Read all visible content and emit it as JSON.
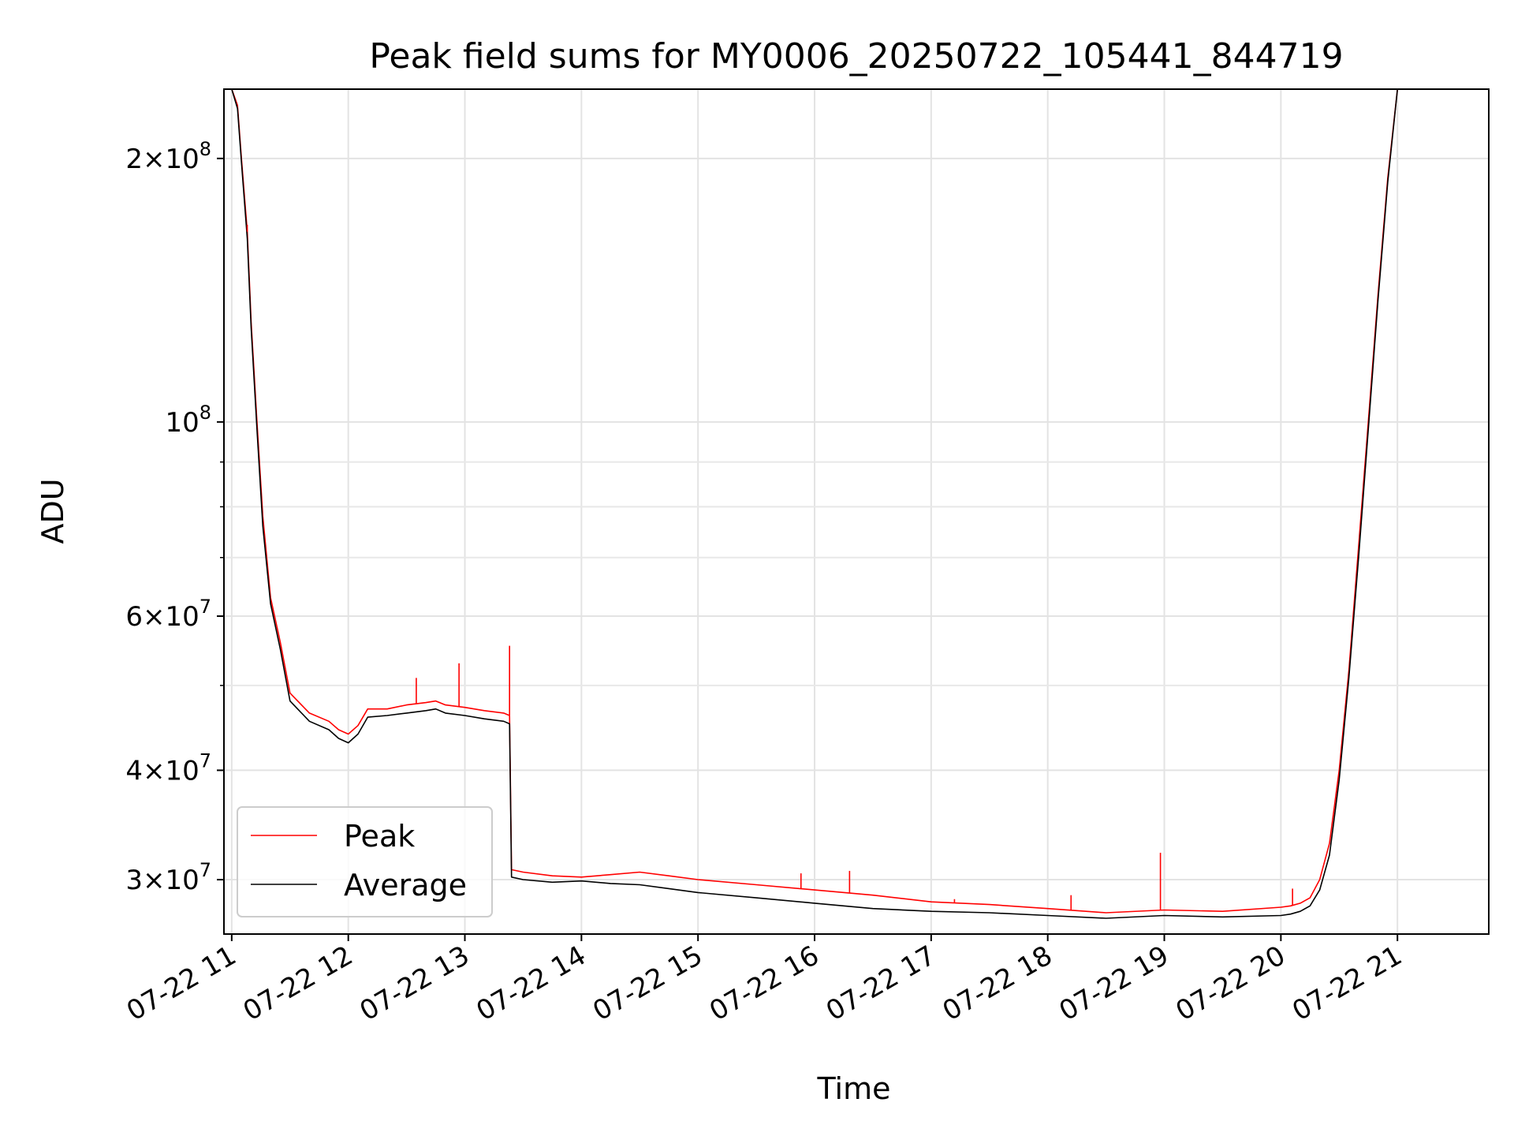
{
  "chart_data": {
    "type": "line",
    "title": "Peak field sums for MY0006_20250722_105441_844719",
    "xlabel": "Time",
    "ylabel": "ADU",
    "yscale": "log",
    "grid": true,
    "legend_position": "lower-left",
    "xlim": [
      "2025-07-22 10:56",
      "2025-07-22 21:47"
    ],
    "ylim": [
      26000000,
      240000000
    ],
    "x_ticks": [
      {
        "value": "2025-07-22 11:00",
        "label": "07-22 11"
      },
      {
        "value": "2025-07-22 12:00",
        "label": "07-22 12"
      },
      {
        "value": "2025-07-22 13:00",
        "label": "07-22 13"
      },
      {
        "value": "2025-07-22 14:00",
        "label": "07-22 14"
      },
      {
        "value": "2025-07-22 15:00",
        "label": "07-22 15"
      },
      {
        "value": "2025-07-22 16:00",
        "label": "07-22 16"
      },
      {
        "value": "2025-07-22 17:00",
        "label": "07-22 17"
      },
      {
        "value": "2025-07-22 18:00",
        "label": "07-22 18"
      },
      {
        "value": "2025-07-22 19:00",
        "label": "07-22 19"
      },
      {
        "value": "2025-07-22 20:00",
        "label": "07-22 20"
      },
      {
        "value": "2025-07-22 21:00",
        "label": "07-22 21"
      }
    ],
    "y_ticks_major": [
      {
        "value": 30000000,
        "base": "3×10",
        "exp": "7"
      },
      {
        "value": 40000000,
        "base": "4×10",
        "exp": "7"
      },
      {
        "value": 60000000,
        "base": "6×10",
        "exp": "7"
      },
      {
        "value": 100000000,
        "base": "10",
        "exp": "8"
      },
      {
        "value": 200000000,
        "base": "2×10",
        "exp": "8"
      }
    ],
    "y_ticks_minor": [
      50000000,
      70000000,
      80000000,
      90000000
    ],
    "series": [
      {
        "name": "Peak",
        "color": "#ff0000",
        "x": [
          "2025-07-22 11:00",
          "2025-07-22 11:03",
          "2025-07-22 11:05",
          "2025-07-22 11:08",
          "2025-07-22 11:10",
          "2025-07-22 11:13",
          "2025-07-22 11:16",
          "2025-07-22 11:20",
          "2025-07-22 11:25",
          "2025-07-22 11:30",
          "2025-07-22 11:40",
          "2025-07-22 11:50",
          "2025-07-22 11:55",
          "2025-07-22 12:00",
          "2025-07-22 12:05",
          "2025-07-22 12:10",
          "2025-07-22 12:20",
          "2025-07-22 12:30",
          "2025-07-22 12:40",
          "2025-07-22 12:45",
          "2025-07-22 12:50",
          "2025-07-22 13:00",
          "2025-07-22 13:10",
          "2025-07-22 13:20",
          "2025-07-22 13:23",
          "2025-07-22 13:24",
          "2025-07-22 13:30",
          "2025-07-22 13:45",
          "2025-07-22 14:00",
          "2025-07-22 14:15",
          "2025-07-22 14:30",
          "2025-07-22 14:45",
          "2025-07-22 15:00",
          "2025-07-22 15:30",
          "2025-07-22 16:00",
          "2025-07-22 16:30",
          "2025-07-22 17:00",
          "2025-07-22 17:30",
          "2025-07-22 18:00",
          "2025-07-22 18:30",
          "2025-07-22 19:00",
          "2025-07-22 19:30",
          "2025-07-22 20:00",
          "2025-07-22 20:05",
          "2025-07-22 20:10",
          "2025-07-22 20:15",
          "2025-07-22 20:20",
          "2025-07-22 20:25",
          "2025-07-22 20:30",
          "2025-07-22 20:35",
          "2025-07-22 20:40",
          "2025-07-22 20:45",
          "2025-07-22 20:50",
          "2025-07-22 20:55",
          "2025-07-22 21:00",
          "2025-07-22 21:05"
        ],
        "values": [
          240000000,
          230000000,
          200000000,
          165000000,
          130000000,
          100000000,
          78000000,
          63000000,
          56000000,
          49000000,
          46500000,
          45500000,
          44500000,
          44000000,
          45000000,
          47000000,
          47000000,
          47500000,
          47800000,
          48000000,
          47500000,
          47200000,
          46800000,
          46500000,
          46200000,
          30800000,
          30600000,
          30300000,
          30200000,
          30400000,
          30600000,
          30300000,
          30000000,
          29600000,
          29200000,
          28800000,
          28300000,
          28100000,
          27800000,
          27500000,
          27700000,
          27600000,
          27900000,
          28000000,
          28200000,
          28600000,
          30000000,
          33000000,
          40000000,
          52000000,
          72000000,
          100000000,
          140000000,
          190000000,
          240000000,
          240000000
        ]
      },
      {
        "name": "Average",
        "color": "#000000",
        "x": [
          "2025-07-22 11:00",
          "2025-07-22 11:03",
          "2025-07-22 11:05",
          "2025-07-22 11:08",
          "2025-07-22 11:10",
          "2025-07-22 11:13",
          "2025-07-22 11:16",
          "2025-07-22 11:20",
          "2025-07-22 11:25",
          "2025-07-22 11:30",
          "2025-07-22 11:40",
          "2025-07-22 11:50",
          "2025-07-22 11:55",
          "2025-07-22 12:00",
          "2025-07-22 12:05",
          "2025-07-22 12:10",
          "2025-07-22 12:20",
          "2025-07-22 12:30",
          "2025-07-22 12:40",
          "2025-07-22 12:45",
          "2025-07-22 12:50",
          "2025-07-22 13:00",
          "2025-07-22 13:10",
          "2025-07-22 13:20",
          "2025-07-22 13:23",
          "2025-07-22 13:24",
          "2025-07-22 13:30",
          "2025-07-22 13:45",
          "2025-07-22 14:00",
          "2025-07-22 14:15",
          "2025-07-22 14:30",
          "2025-07-22 14:45",
          "2025-07-22 15:00",
          "2025-07-22 15:30",
          "2025-07-22 16:00",
          "2025-07-22 16:30",
          "2025-07-22 17:00",
          "2025-07-22 17:30",
          "2025-07-22 18:00",
          "2025-07-22 18:30",
          "2025-07-22 19:00",
          "2025-07-22 19:30",
          "2025-07-22 20:00",
          "2025-07-22 20:05",
          "2025-07-22 20:10",
          "2025-07-22 20:15",
          "2025-07-22 20:20",
          "2025-07-22 20:25",
          "2025-07-22 20:30",
          "2025-07-22 20:35",
          "2025-07-22 20:40",
          "2025-07-22 20:45",
          "2025-07-22 20:50",
          "2025-07-22 20:55",
          "2025-07-22 21:00",
          "2025-07-22 21:05"
        ],
        "values": [
          240000000,
          228000000,
          198000000,
          162000000,
          128000000,
          98000000,
          76000000,
          62000000,
          55000000,
          48000000,
          45500000,
          44500000,
          43500000,
          43000000,
          44000000,
          46000000,
          46200000,
          46500000,
          46800000,
          47000000,
          46500000,
          46200000,
          45800000,
          45500000,
          45200000,
          30200000,
          30000000,
          29800000,
          29900000,
          29700000,
          29600000,
          29300000,
          29000000,
          28600000,
          28200000,
          27800000,
          27600000,
          27500000,
          27300000,
          27100000,
          27300000,
          27200000,
          27300000,
          27400000,
          27600000,
          28000000,
          29200000,
          32000000,
          39000000,
          51000000,
          70000000,
          98000000,
          138000000,
          188000000,
          240000000,
          240000000
        ]
      }
    ],
    "spikes": [
      {
        "series": "Peak",
        "x": "2025-07-22 11:08",
        "value": 168000000
      },
      {
        "series": "Peak",
        "x": "2025-07-22 12:35",
        "value": 51000000
      },
      {
        "series": "Peak",
        "x": "2025-07-22 12:57",
        "value": 53000000
      },
      {
        "series": "Peak",
        "x": "2025-07-22 13:23",
        "value": 55500000
      },
      {
        "series": "Peak",
        "x": "2025-07-22 15:53",
        "value": 30500000
      },
      {
        "series": "Peak",
        "x": "2025-07-22 16:18",
        "value": 30700000
      },
      {
        "series": "Peak",
        "x": "2025-07-22 17:12",
        "value": 28500000
      },
      {
        "series": "Peak",
        "x": "2025-07-22 18:12",
        "value": 28800000
      },
      {
        "series": "Peak",
        "x": "2025-07-22 18:58",
        "value": 32200000
      },
      {
        "series": "Peak",
        "x": "2025-07-22 20:06",
        "value": 29300000
      }
    ]
  }
}
